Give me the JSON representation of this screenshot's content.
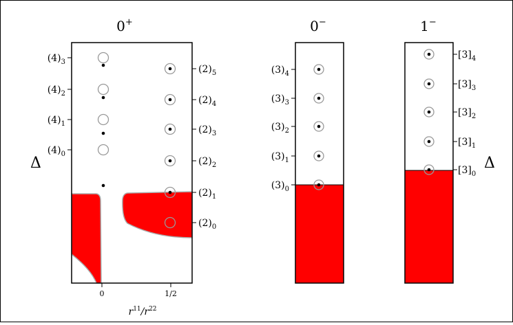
{
  "chart_data": [
    {
      "type": "scatter",
      "panel": "0+",
      "title": "0",
      "title_sup": "+",
      "xlabel_base": "r",
      "xlabel_sup1": "11",
      "xlabel_mid": "/r",
      "xlabel_sup2": "22",
      "ylabel": "Δ",
      "xticks": [
        "0",
        "1/2"
      ],
      "xlim": [
        -0.23,
        0.66
      ],
      "excluded_region_color": "#ff0000",
      "circles_at_0": {
        "x": 0,
        "y": [
          0,
          1,
          2,
          3
        ]
      },
      "dots_at_0": {
        "x": 0,
        "y": [
          -1.05,
          0.45,
          1.4,
          2.3
        ]
      },
      "circled_dots_at_half": {
        "x": 0.5,
        "y": [
          1,
          2,
          3,
          4,
          5
        ],
        "circle_only": [
          0
        ]
      },
      "labels_left": [
        {
          "base": "(4)",
          "sub": "3",
          "level": 3
        },
        {
          "base": "(4)",
          "sub": "2",
          "level": 2
        },
        {
          "base": "(4)",
          "sub": "1",
          "level": 1
        },
        {
          "base": "(4)",
          "sub": "0",
          "level": 0
        }
      ],
      "labels_right": [
        {
          "base": "(2)",
          "sub": "5",
          "level": 5
        },
        {
          "base": "(2)",
          "sub": "4",
          "level": 4
        },
        {
          "base": "(2)",
          "sub": "3",
          "level": 3
        },
        {
          "base": "(2)",
          "sub": "2",
          "level": 2
        },
        {
          "base": "(2)",
          "sub": "1",
          "level": 1
        },
        {
          "base": "(2)",
          "sub": "0",
          "level": 0
        }
      ]
    },
    {
      "type": "scatter",
      "panel": "0-",
      "title": "0",
      "title_sup": "−",
      "excluded_region_color": "#ff0000",
      "excluded_above_level": 0,
      "circled_dots": [
        0,
        1,
        2,
        3,
        4
      ],
      "labels_left": [
        {
          "base": "(3)",
          "sub": "4",
          "level": 4
        },
        {
          "base": "(3)",
          "sub": "3",
          "level": 3
        },
        {
          "base": "(3)",
          "sub": "2",
          "level": 2
        },
        {
          "base": "(3)",
          "sub": "1",
          "level": 1
        },
        {
          "base": "(3)",
          "sub": "0",
          "level": 0
        }
      ]
    },
    {
      "type": "scatter",
      "panel": "1-",
      "title": "1",
      "title_sup": "−",
      "ylabel": "Δ",
      "excluded_region_color": "#ff0000",
      "excluded_above_level": 0,
      "circled_dots": [
        0,
        1,
        2,
        3,
        4
      ],
      "labels_right": [
        {
          "base": "[3]",
          "sub": "4",
          "level": 4
        },
        {
          "base": "[3]",
          "sub": "3",
          "level": 3
        },
        {
          "base": "[3]",
          "sub": "2",
          "level": 2
        },
        {
          "base": "[3]",
          "sub": "1",
          "level": 1
        },
        {
          "base": "[3]",
          "sub": "0",
          "level": 0
        }
      ]
    }
  ]
}
